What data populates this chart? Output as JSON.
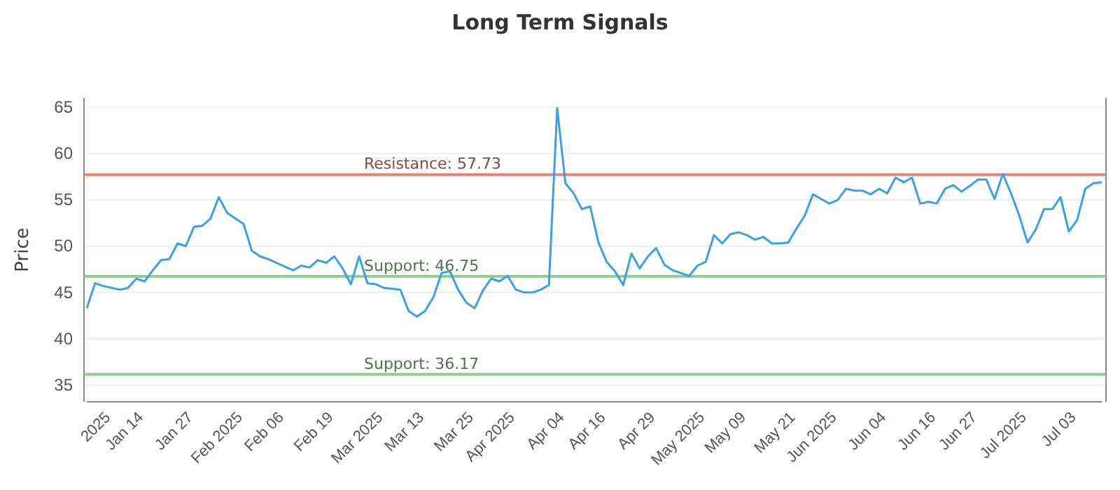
{
  "chart_data": {
    "type": "line",
    "title": "Long Term Signals",
    "ylabel": "Price",
    "categories": [
      null,
      null,
      null,
      "2025",
      null,
      null,
      null,
      "Jan 14",
      null,
      null,
      null,
      null,
      null,
      "Jan 27",
      null,
      null,
      null,
      null,
      null,
      "Feb 2025",
      null,
      null,
      null,
      null,
      "Feb 06",
      null,
      null,
      null,
      null,
      null,
      "Feb 19",
      null,
      null,
      null,
      null,
      null,
      "Mar 2025",
      null,
      null,
      null,
      null,
      "Mar 13",
      null,
      null,
      null,
      null,
      null,
      "Mar 25",
      null,
      null,
      null,
      null,
      "Apr 2025",
      null,
      null,
      null,
      null,
      null,
      "Apr 04",
      null,
      null,
      null,
      null,
      "Apr 16",
      null,
      null,
      null,
      null,
      null,
      "Apr 29",
      null,
      null,
      null,
      null,
      null,
      "May 2025",
      null,
      null,
      null,
      null,
      "May 09",
      null,
      null,
      null,
      null,
      null,
      "May 21",
      null,
      null,
      null,
      null,
      "Jun 2025",
      null,
      null,
      null,
      null,
      null,
      "Jun 04",
      null,
      null,
      null,
      null,
      null,
      "Jun 16",
      null,
      null,
      null,
      null,
      "Jun 27",
      null,
      null,
      null,
      null,
      null,
      "Jul 2025",
      null,
      null,
      null,
      null,
      null,
      "Jul 03",
      null,
      null,
      null
    ],
    "series": [
      {
        "color": "#3aa0e8",
        "values": [
          43.3,
          46.0,
          45.7,
          45.5,
          45.3,
          45.5,
          46.5,
          46.2,
          47.4,
          48.5,
          48.6,
          50.3,
          50.0,
          52.1,
          52.2,
          53.0,
          55.3,
          53.6,
          53.0,
          52.4,
          49.5,
          48.9,
          48.6,
          48.2,
          47.8,
          47.4,
          47.9,
          47.7,
          48.5,
          48.2,
          48.9,
          47.6,
          45.9,
          48.9,
          46.0,
          45.9,
          45.5,
          45.4,
          45.3,
          43.0,
          42.4,
          43.0,
          44.5,
          47.1,
          47.3,
          45.3,
          43.9,
          43.3,
          45.2,
          46.5,
          46.2,
          46.8,
          45.3,
          45.0,
          45.0,
          45.3,
          45.8,
          64.9,
          56.8,
          55.7,
          54.0,
          54.3,
          50.4,
          48.3,
          47.3,
          45.8,
          49.2,
          47.6,
          48.9,
          49.8,
          48.0,
          47.4,
          47.1,
          46.8,
          47.9,
          48.3,
          51.2,
          50.3,
          51.3,
          51.5,
          51.2,
          50.7,
          51.0,
          50.3,
          50.3,
          50.4,
          51.9,
          53.3,
          55.6,
          55.1,
          54.6,
          55.0,
          56.2,
          56.0,
          56.0,
          55.6,
          56.2,
          55.7,
          57.4,
          56.9,
          57.4,
          54.6,
          54.8,
          54.6,
          56.2,
          56.6,
          55.9,
          56.5,
          57.2,
          57.2,
          55.1,
          57.8,
          55.7,
          53.3,
          50.4,
          51.8,
          54.0,
          54.0,
          55.3,
          51.6,
          52.8,
          56.2,
          56.8,
          56.9
        ]
      }
    ],
    "ylim": [
      33.2,
      66
    ],
    "yticks": [
      35,
      40,
      45,
      50,
      55,
      60,
      65
    ],
    "grid": "y",
    "ref_lines": [
      {
        "axis": "y",
        "value": 57.73,
        "label": "Resistance: 57.73",
        "color": "#e88080"
      },
      {
        "axis": "y",
        "value": 46.75,
        "label": "Support: 46.75",
        "color": "#8ccc8c"
      },
      {
        "axis": "y",
        "value": 36.17,
        "label": "Support: 36.17",
        "color": "#8ccc8c"
      }
    ]
  }
}
